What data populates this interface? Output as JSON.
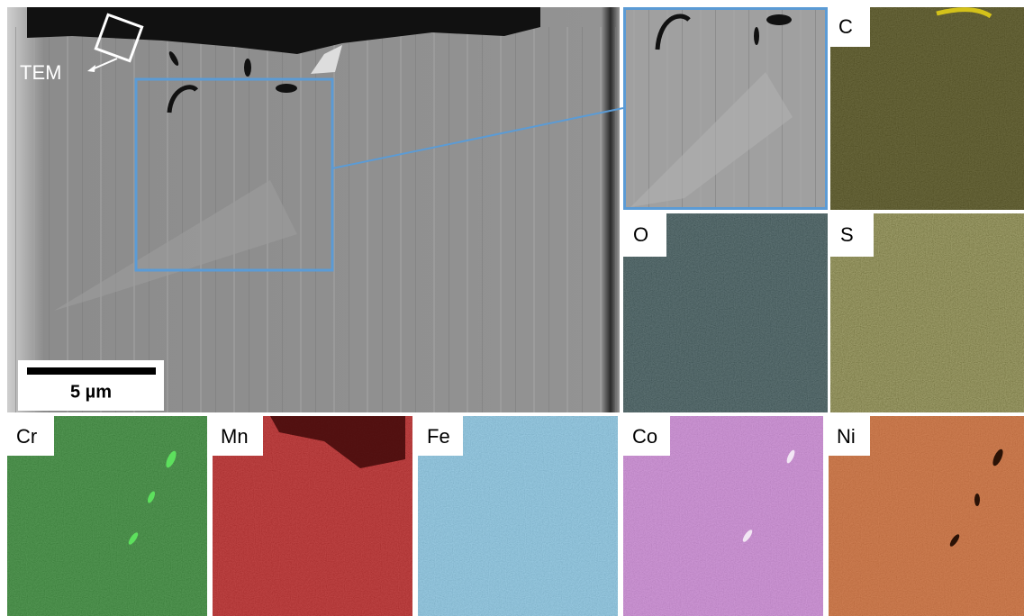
{
  "sem": {
    "annotation": "TEM",
    "scale_bar": "5 µm"
  },
  "maps": [
    {
      "label": "C"
    },
    {
      "label": "O"
    },
    {
      "label": "S"
    },
    {
      "label": "Cr"
    },
    {
      "label": "Mn"
    },
    {
      "label": "Fe"
    },
    {
      "label": "Co"
    },
    {
      "label": "Ni"
    }
  ]
}
